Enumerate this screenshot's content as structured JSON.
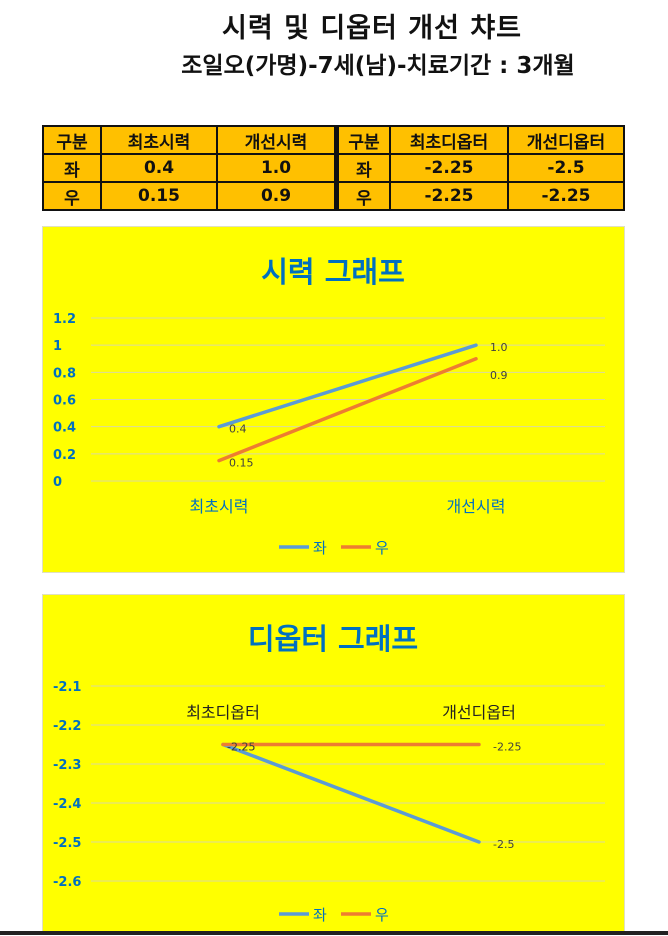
{
  "header": {
    "title": "시력 및 디옵터 개선 챠트",
    "subtitle": "조일오(가명)-7세(남)-치료기간 : 3개월"
  },
  "table": {
    "rows": [
      [
        "구분",
        "최초시력",
        "개선시력",
        "구분",
        "최초디옵터",
        "개선디옵터"
      ],
      [
        "좌",
        "0.4",
        "1.0",
        "좌",
        "-2.25",
        "-2.5"
      ],
      [
        "우",
        "0.15",
        "0.9",
        "우",
        "-2.25",
        "-2.25"
      ]
    ]
  },
  "chart_data": [
    {
      "type": "line",
      "title": "시력 그래프",
      "categories": [
        "최초시력",
        "개선시력"
      ],
      "series": [
        {
          "name": "좌",
          "values": [
            0.4,
            1.0
          ],
          "labels": [
            "0.4",
            "1.0"
          ],
          "color": "#5b9bd5"
        },
        {
          "name": "우",
          "values": [
            0.15,
            0.9
          ],
          "labels": [
            "0.15",
            "0.9"
          ],
          "color": "#ed7d31"
        }
      ],
      "y_ticks": [
        "1.2",
        "1",
        "0.8",
        "0.6",
        "0.4",
        "0.2",
        "0"
      ],
      "ylim": [
        0,
        1.2
      ],
      "grid": true,
      "legend": "bottom"
    },
    {
      "type": "line",
      "title": "디옵터 그래프",
      "categories": [
        "최초디옵터",
        "개선디옵터"
      ],
      "series": [
        {
          "name": "좌",
          "values": [
            -2.25,
            -2.5
          ],
          "labels": [
            "-2.25",
            "-2.5"
          ],
          "color": "#5b9bd5"
        },
        {
          "name": "우",
          "values": [
            -2.25,
            -2.25
          ],
          "labels": [
            "-2.25",
            "-2.25"
          ],
          "color": "#ed7d31"
        }
      ],
      "y_ticks": [
        "-2.1",
        "-2.2",
        "-2.3",
        "-2.4",
        "-2.5",
        "-2.6"
      ],
      "ylim": [
        -2.6,
        -2.1
      ],
      "grid": true,
      "legend": "bottom"
    }
  ],
  "colors": {
    "chart_bg": "#ffff00",
    "table_bg": "#ffc000",
    "axis_text": "#0070c0",
    "title_text": "#0070c0"
  }
}
